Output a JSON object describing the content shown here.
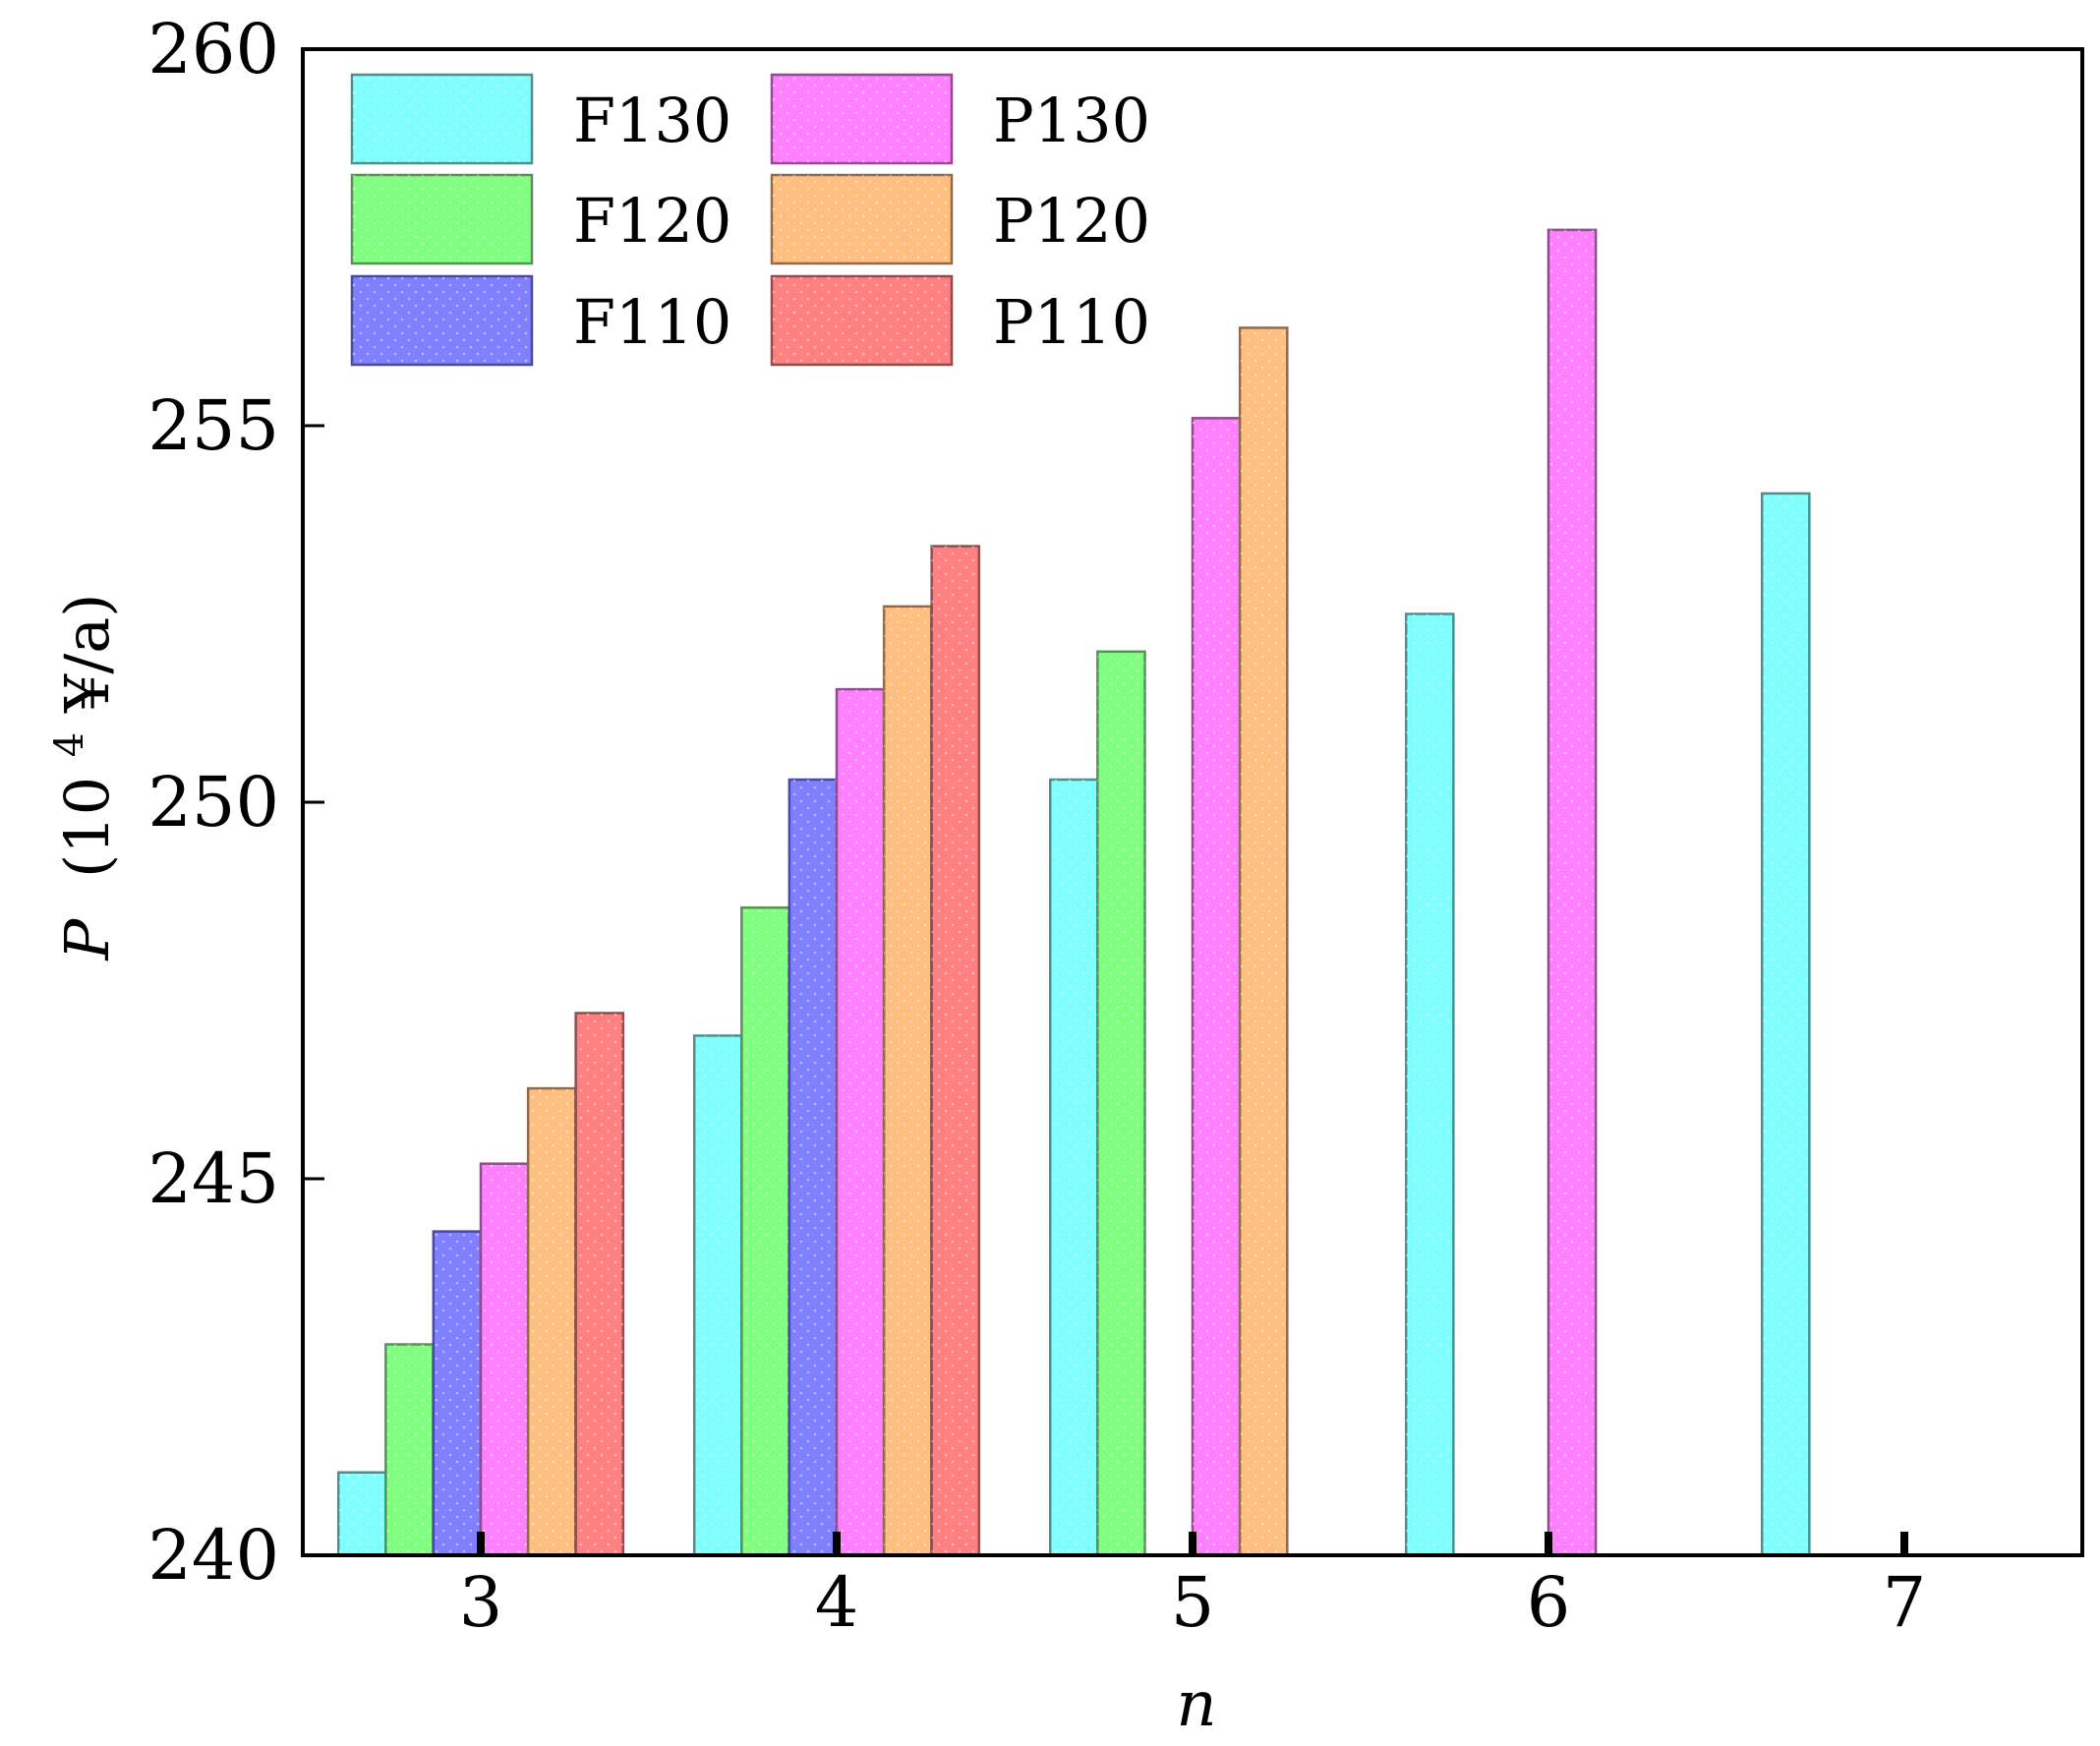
{
  "chart_data": {
    "type": "bar",
    "title": "",
    "xlabel": "n",
    "ylabel_italic": "P",
    "ylabel_base": "(10",
    "ylabel_sup": "4",
    "ylabel_unit": "¥/a)",
    "categories": [
      "3",
      "4",
      "5",
      "6",
      "7"
    ],
    "xlim": [
      2.5,
      7.5
    ],
    "ylim": [
      240,
      260
    ],
    "yticks": [
      240,
      245,
      250,
      255,
      260
    ],
    "ytick_labels": [
      "240",
      "245",
      "250",
      "255",
      "260"
    ],
    "bar_width": 0.133,
    "legend": {
      "position": "top-left",
      "columns": 2
    },
    "series": [
      {
        "name": "F130",
        "color": "#80ffff",
        "stroke": "#4d8f8f",
        "values": [
          241.1,
          246.9,
          250.3,
          252.5,
          254.1
        ],
        "x_offsets": [
          -0.4,
          -0.4,
          -0.4,
          -0.4,
          -0.4
        ]
      },
      {
        "name": "F120",
        "color": "#80ff80",
        "stroke": "#5a8f5a",
        "values": [
          242.8,
          248.6,
          252.0,
          null,
          null
        ],
        "x_offsets": [
          -0.267,
          -0.267,
          -0.267,
          null,
          null
        ]
      },
      {
        "name": "F110",
        "color": "#8080ff",
        "stroke": "#4a4aa0",
        "values": [
          244.3,
          250.3,
          null,
          null,
          null
        ],
        "x_offsets": [
          -0.133,
          -0.133,
          null,
          null,
          null
        ]
      },
      {
        "name": "P130",
        "color": "#ff80ff",
        "stroke": "#8f4d8f",
        "values": [
          245.2,
          251.5,
          255.1,
          257.6,
          null
        ],
        "x_offsets": [
          0.0,
          0.0,
          0.0,
          0.0,
          null
        ]
      },
      {
        "name": "P120",
        "color": "#ffbf80",
        "stroke": "#8f6a4d",
        "values": [
          246.2,
          252.6,
          256.3,
          null,
          null
        ],
        "x_offsets": [
          0.133,
          0.133,
          0.133,
          null,
          null
        ]
      },
      {
        "name": "P110",
        "color": "#ff8080",
        "stroke": "#8f4d4d",
        "values": [
          247.2,
          253.4,
          null,
          null,
          null
        ],
        "x_offsets": [
          0.267,
          0.267,
          null,
          null,
          null
        ]
      }
    ]
  }
}
